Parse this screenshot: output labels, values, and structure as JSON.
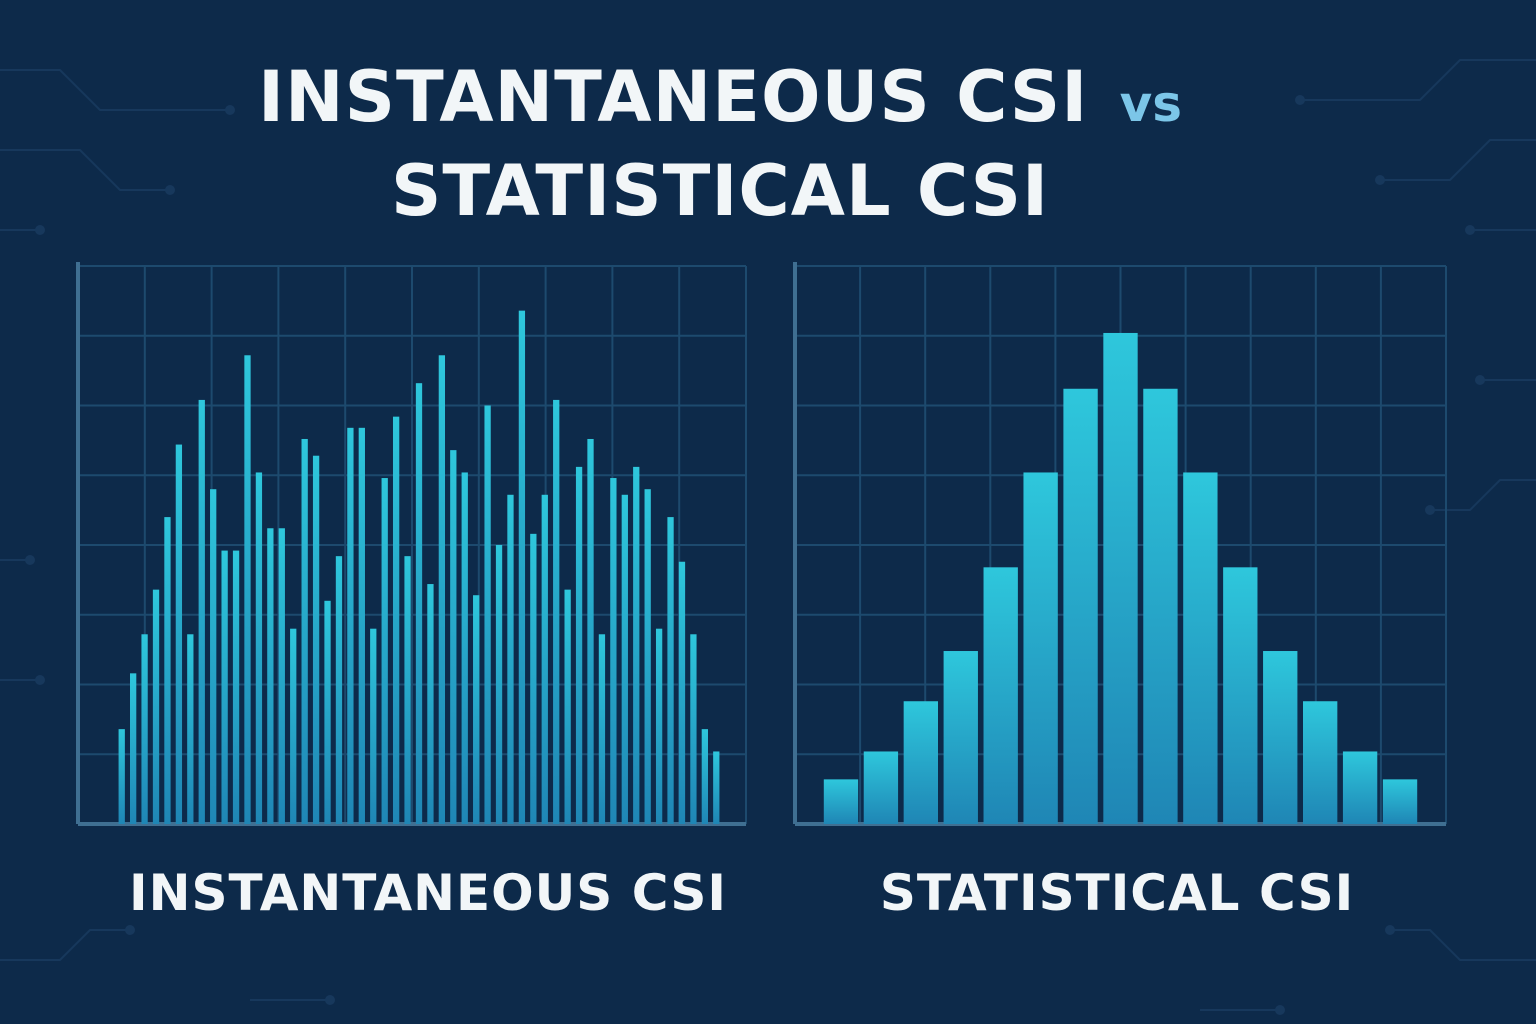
{
  "title": {
    "line1": "INSTANTANEOUS CSI",
    "vs": "vs",
    "line2": "STATISTICAL CSI"
  },
  "colors": {
    "background": "#0d2a4a",
    "grid": "#1d4a6e",
    "axis": "#3f6f92",
    "bar_top": "#2ec7dc",
    "bar_bottom": "#1f86b5",
    "text": "#f2f6f8",
    "vs": "#7cc6e8"
  },
  "chart_data": [
    {
      "type": "bar",
      "title": "INSTANTANEOUS CSI",
      "xlabel": "",
      "ylabel": "",
      "ylim": [
        0,
        100
      ],
      "grid": true,
      "values": [
        17,
        27,
        34,
        42,
        55,
        68,
        34,
        76,
        60,
        49,
        49,
        84,
        63,
        53,
        53,
        35,
        69,
        66,
        40,
        48,
        71,
        71,
        35,
        62,
        73,
        48,
        79,
        43,
        84,
        67,
        63,
        41,
        75,
        50,
        59,
        92,
        52,
        59,
        76,
        42,
        64,
        69,
        34,
        62,
        59,
        64,
        60,
        35,
        55,
        47,
        34,
        17,
        13
      ]
    },
    {
      "type": "bar",
      "title": "STATISTICAL CSI",
      "xlabel": "",
      "ylabel": "",
      "ylim": [
        0,
        100
      ],
      "grid": true,
      "values": [
        8,
        13,
        22,
        31,
        46,
        63,
        78,
        88,
        78,
        63,
        46,
        31,
        22,
        13,
        8
      ]
    }
  ]
}
